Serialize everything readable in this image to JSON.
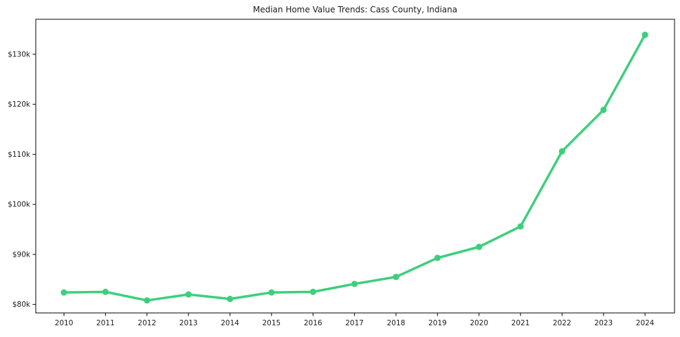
{
  "title": "Median Home Value Trends: Cass County, Indiana",
  "colors": {
    "line": "#3dcf7b",
    "marker": "#3dcf7b",
    "text": "#1a1a1a",
    "spine": "#000000",
    "background": "#ffffff"
  },
  "chart_data": {
    "type": "line",
    "title": "Median Home Value Trends: Cass County, Indiana",
    "xlabel": "",
    "ylabel": "",
    "x": [
      2010,
      2011,
      2012,
      2013,
      2014,
      2015,
      2016,
      2017,
      2018,
      2019,
      2020,
      2021,
      2022,
      2023,
      2024
    ],
    "series": [
      {
        "name": "Median Home Value",
        "values": [
          82400,
          82500,
          80800,
          82000,
          81100,
          82400,
          82500,
          84100,
          85500,
          89300,
          91500,
          95600,
          110600,
          118900,
          133900
        ]
      }
    ],
    "xtick_labels": [
      "2010",
      "2011",
      "2012",
      "2013",
      "2014",
      "2015",
      "2016",
      "2017",
      "2018",
      "2019",
      "2020",
      "2021",
      "2022",
      "2023",
      "2024"
    ],
    "ytick_values": [
      80000,
      90000,
      100000,
      110000,
      120000,
      130000
    ],
    "ytick_labels": [
      "$80k",
      "$90k",
      "$100k",
      "$110k",
      "$120k",
      "$130k"
    ],
    "ylim": [
      78300,
      137000
    ],
    "xlim": [
      2009.32,
      2024.71
    ],
    "grid": false,
    "legend_position": "none",
    "marker": "circle",
    "frame": "box"
  }
}
